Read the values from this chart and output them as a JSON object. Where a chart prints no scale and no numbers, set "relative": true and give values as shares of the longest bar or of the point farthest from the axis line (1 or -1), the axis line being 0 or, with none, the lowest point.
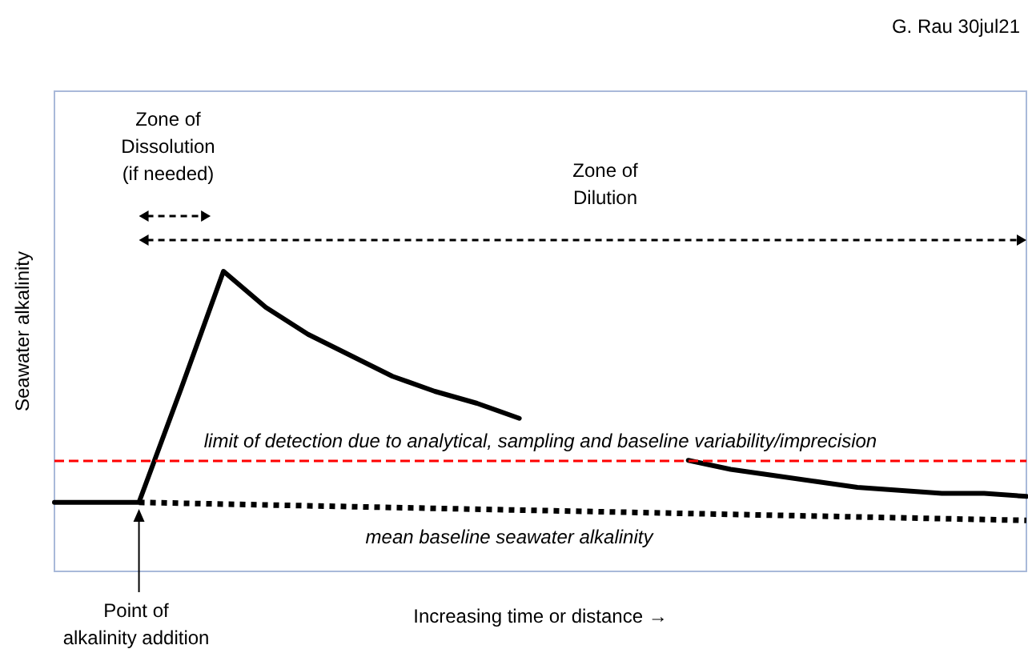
{
  "chart_data": {
    "type": "line",
    "relative": true,
    "xlabel": "Increasing time or distance →",
    "ylabel": "Seawater alkalinity",
    "categories": [
      null,
      null,
      null,
      null,
      null,
      null,
      null,
      null,
      null,
      null,
      null,
      null,
      null,
      null,
      null,
      null,
      null,
      null,
      null,
      null,
      null,
      null,
      null,
      null
    ],
    "series": [
      {
        "color": "#000000",
        "line_style": "solid",
        "values": [
          0.23,
          0.23,
          0.23,
          0.61,
          1,
          0.88,
          0.79,
          0.72,
          0.65,
          0.6,
          0.56,
          0.51,
          null,
          null,
          null,
          0.37,
          0.34,
          0.32,
          0.3,
          0.28,
          0.27,
          0.26,
          0.26,
          0.25
        ]
      },
      {
        "color": "#000000",
        "line_style": "dotted",
        "values": [
          null,
          null,
          0.23,
          null,
          null,
          null,
          null,
          null,
          null,
          null,
          null,
          null,
          null,
          null,
          null,
          null,
          null,
          null,
          null,
          null,
          null,
          null,
          null,
          0.17
        ]
      }
    ],
    "ref_lines": [
      {
        "axis": "y",
        "value": 0.37,
        "label": "limit of detection due to analytical, sampling and baseline variability/imprecision",
        "color": "#ff0000",
        "line_style": "dashed"
      }
    ],
    "annotations": [
      "Zone of\nDissolution\n(if needed)",
      "Zone of\nDilution",
      "mean baseline seawater alkalinity",
      "Point of\nalkalinity addition",
      "G. Rau 30jul21"
    ]
  }
}
